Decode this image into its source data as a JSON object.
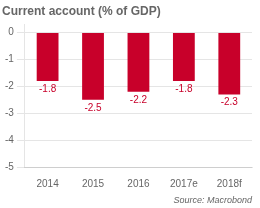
{
  "chart_data": {
    "type": "bar",
    "title": "Current account (% of GDP)",
    "categories": [
      "2014",
      "2015",
      "2016",
      "2017e",
      "2018f"
    ],
    "values": [
      -1.8,
      -2.5,
      -2.2,
      -1.8,
      -2.3
    ],
    "color": "#c8002a",
    "ylim": [
      -5,
      0.3
    ],
    "yticks": [
      0,
      -1,
      -2,
      -3,
      -4,
      -5
    ],
    "grid": true,
    "data_labels": true,
    "annotation": "Source: Macrobond"
  }
}
